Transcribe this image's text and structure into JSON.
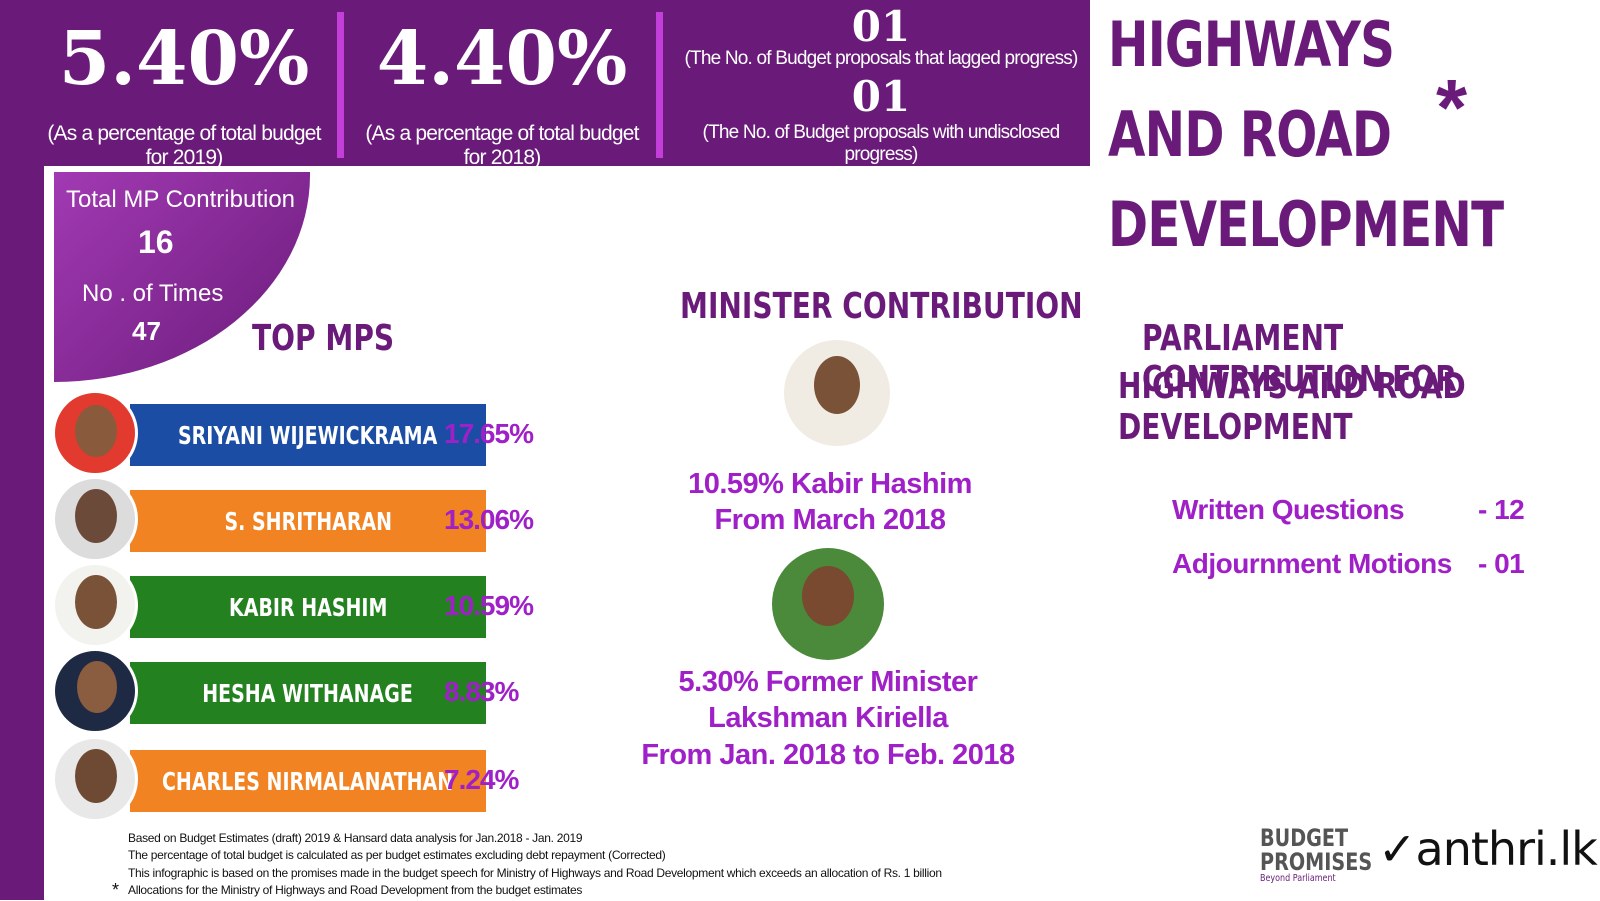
{
  "stats": {
    "s1_value": "5.40%",
    "s1_caption": "(As a percentage of total budget for 2019)",
    "s2_value": "4.40%",
    "s2_caption": "(As a percentage of total budget for 2018)",
    "s3_value": "01",
    "s3_caption": "(The No. of Budget proposals that lagged progress)",
    "s4_value": "01",
    "s4_caption": "(The No. of Budget proposals with undisclosed progress)"
  },
  "title": {
    "line1": "HIGHWAYS AND ROAD",
    "line2": "DEVELOPMENT",
    "asterisk": "*"
  },
  "contribution": {
    "total_label": "Total MP Contribution",
    "total_value": "16",
    "times_label": "No . of Times",
    "times_value": "47"
  },
  "top_mps": {
    "heading": "TOP MPS",
    "items": [
      {
        "name": "SRIYANI  WIJEWICKRAMA",
        "pct": "17.65%",
        "color": "#1a4da3"
      },
      {
        "name": "S. SHRITHARAN",
        "pct": "13.06%",
        "color": "#f28322"
      },
      {
        "name": "KABIR HASHIM",
        "pct": "10.59%",
        "color": "#23811f"
      },
      {
        "name": "HESHA WITHANAGE",
        "pct": "8.83%",
        "color": "#23811f"
      },
      {
        "name": "CHARLES  NIRMALANATHAN",
        "pct": "7.24%",
        "color": "#f28322"
      }
    ]
  },
  "minister": {
    "heading": "MINISTER  CONTRIBUTION",
    "m1_line1": "10.59%  Kabir Hashim",
    "m1_line2": "From March 2018",
    "m2_line1": "5.30%  Former Minister",
    "m2_line2": "Lakshman Kiriella",
    "m2_line3": "From Jan. 2018 to  Feb. 2018"
  },
  "parliament": {
    "heading_line1": "PARLIAMENT CONTRIBUTION FOR",
    "heading_line2": "HIGHWAYS AND ROAD DEVELOPMENT",
    "wq_label": "Written Questions",
    "wq_value": "-  12",
    "am_label": "Adjournment Motions",
    "am_value": "-  01"
  },
  "footnotes": {
    "n1": "Based on Budget Estimates (draft) 2019 & Hansard data analysis for Jan.2018 - Jan. 2019",
    "n2": "The percentage of total budget is calculated as per budget estimates excluding debt repayment (Corrected)",
    "n3": "This infographic is based on the promises made in the budget speech for Ministry of Highways and Road Development which exceeds an allocation of Rs. 1 billion",
    "n4": "Allocations for the Ministry of  Highways and Road Development from the budget estimates",
    "star": "*"
  },
  "logos": {
    "bp_line1": "BUDGET",
    "bp_line2": "PROMISES",
    "bp_sub": "Beyond Parliament",
    "manthri": "anthri.lk"
  }
}
